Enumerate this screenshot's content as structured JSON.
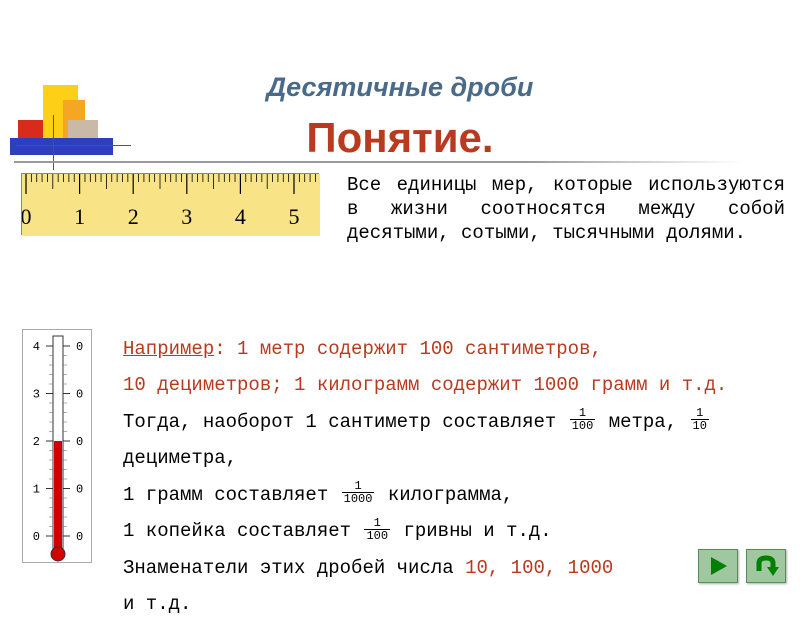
{
  "colors": {
    "title1": "#4a6a8a",
    "title2": "#b83a1f",
    "accent": "#b83a1f",
    "ruler_bg": "#f8e487",
    "nav_arrow": "#008000"
  },
  "title": {
    "line1": "Десятичные дроби",
    "line2": "Понятие."
  },
  "ruler": {
    "labels": [
      "0",
      "1",
      "2",
      "3",
      "4",
      "5"
    ],
    "major": 6,
    "minor_per_major": 10
  },
  "intro": "Все единицы мер, которые используются в жизни соотносятся между собой десятыми, сотыми, тысячными долями.",
  "thermo": {
    "left_labels": [
      "4",
      "3",
      "2",
      "1",
      "0"
    ],
    "right_labels": [
      "0",
      "0",
      "0",
      "0",
      "0"
    ],
    "fill_from_index": 2
  },
  "body": {
    "eg_label": "Например",
    "eg_rest": ": 1 метр содержит 100 сантиметров,",
    "line2": "10 дециметров; 1 килограмм содержит 1000 грамм и т.д.",
    "line3_a": "Тогда, наоборот 1 сантиметр составляет ",
    "line3_b": " метра, ",
    "line3_c": " дециметра,",
    "line4_a": "1 грамм составляет ",
    "line4_b": " килограмма,",
    "line5_a": "1 копейка составляет ",
    "line5_b": " гривны и т.д.",
    "line6_a": "Знаменатели этих дробей числа ",
    "line6_b": "10, 100, 1000",
    "line7": "и т.д.",
    "fractions": {
      "f1": {
        "num": "1",
        "den": "100"
      },
      "f2": {
        "num": "1",
        "den": "10"
      },
      "f3": {
        "num": "1",
        "den": "1000"
      },
      "f4": {
        "num": "1",
        "den": "100"
      }
    }
  },
  "nav": {
    "next": "next",
    "back": "back"
  }
}
